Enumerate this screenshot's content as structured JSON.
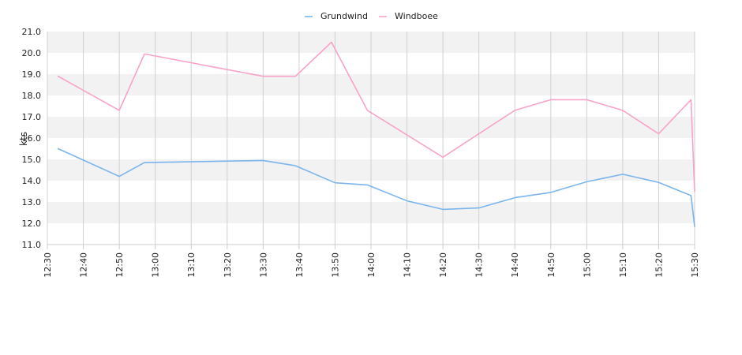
{
  "chart_data": {
    "type": "line",
    "ylabel": "kts",
    "ylim": [
      11.0,
      21.0
    ],
    "y_ticks": [
      "11.0",
      "12.0",
      "13.0",
      "14.0",
      "15.0",
      "16.0",
      "17.0",
      "18.0",
      "19.0",
      "20.0",
      "21.0"
    ],
    "x_range": [
      "12:30",
      "15:30"
    ],
    "x_ticks": [
      "12:30",
      "12:40",
      "12:50",
      "13:00",
      "13:10",
      "13:20",
      "13:30",
      "13:40",
      "13:50",
      "14:00",
      "14:10",
      "14:20",
      "14:30",
      "14:40",
      "14:50",
      "15:00",
      "15:10",
      "15:20",
      "15:30"
    ],
    "legend_position": "top-center",
    "grid": true,
    "series": [
      {
        "name": "Grundwind",
        "color": "#7cb5ec",
        "points": [
          [
            "12:33",
            15.5
          ],
          [
            "12:50",
            14.2
          ],
          [
            "12:57",
            14.85
          ],
          [
            "13:30",
            14.95
          ],
          [
            "13:39",
            14.7
          ],
          [
            "13:50",
            13.9
          ],
          [
            "13:59",
            13.8
          ],
          [
            "14:10",
            13.05
          ],
          [
            "14:20",
            12.65
          ],
          [
            "14:30",
            12.72
          ],
          [
            "14:40",
            13.2
          ],
          [
            "14:50",
            13.45
          ],
          [
            "15:00",
            13.95
          ],
          [
            "15:10",
            14.3
          ],
          [
            "15:20",
            13.92
          ],
          [
            "15:29",
            13.3
          ],
          [
            "15:30",
            11.85
          ]
        ]
      },
      {
        "name": "Windboee",
        "color": "#f7a3c9",
        "points": [
          [
            "12:33",
            18.9
          ],
          [
            "12:50",
            17.3
          ],
          [
            "12:57",
            19.95
          ],
          [
            "13:30",
            18.9
          ],
          [
            "13:39",
            18.9
          ],
          [
            "13:49",
            20.5
          ],
          [
            "13:59",
            17.3
          ],
          [
            "14:20",
            15.1
          ],
          [
            "14:40",
            17.3
          ],
          [
            "14:50",
            17.8
          ],
          [
            "15:00",
            17.8
          ],
          [
            "15:10",
            17.3
          ],
          [
            "15:20",
            16.2
          ],
          [
            "15:29",
            17.8
          ],
          [
            "15:30",
            13.5
          ]
        ]
      }
    ]
  }
}
